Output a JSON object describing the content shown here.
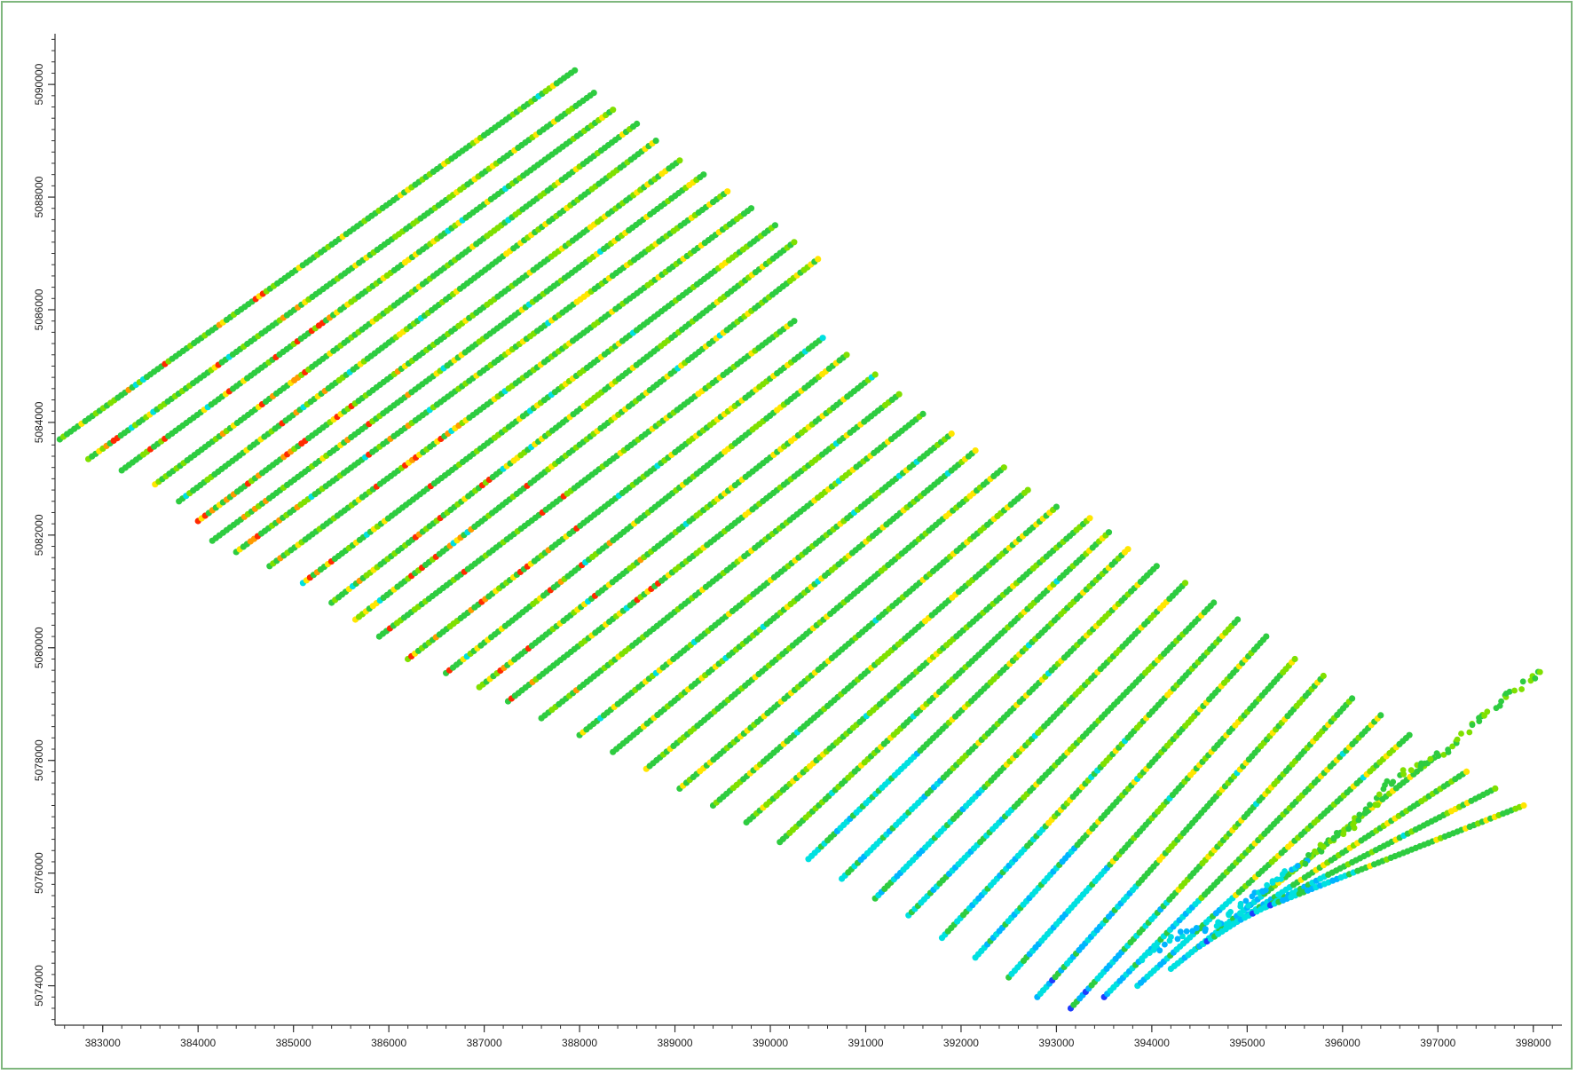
{
  "chart_data": {
    "type": "scatter",
    "title": "",
    "xlabel": "",
    "ylabel": "",
    "xlim": [
      382500,
      398300
    ],
    "ylim": [
      5073300,
      5090900
    ],
    "x_ticks": [
      383000,
      384000,
      385000,
      386000,
      387000,
      388000,
      389000,
      390000,
      391000,
      392000,
      393000,
      394000,
      395000,
      396000,
      397000,
      398000
    ],
    "x_tick_labels": [
      "383000",
      "384000",
      "385000",
      "386000",
      "387000",
      "388000",
      "389000",
      "390000",
      "391000",
      "392000",
      "393000",
      "394000",
      "395000",
      "396000",
      "397000",
      "398000"
    ],
    "y_ticks": [
      5074000,
      5076000,
      5078000,
      5080000,
      5082000,
      5084000,
      5086000,
      5088000,
      5090000
    ],
    "y_tick_labels": [
      "5074000",
      "5076000",
      "5078000",
      "5080000",
      "5082000",
      "5084000",
      "5086000",
      "5088000",
      "5090000"
    ],
    "grid": false,
    "legend": "none",
    "colormap": [
      "#1e3cff",
      "#00b4ff",
      "#00e0e0",
      "#2ecc40",
      "#7fe000",
      "#ffe600",
      "#ff9a00",
      "#ff2a00"
    ],
    "survey_lines": {
      "description_of_data": "flight lines running SW to NE, each with start and end in map coordinates (x easting, y northing)",
      "lines": [
        {
          "start": [
            382550,
            5083700
          ],
          "end": [
            387950,
            5090250
          ]
        },
        {
          "start": [
            382850,
            5083350
          ],
          "end": [
            388150,
            5089850
          ]
        },
        {
          "start": [
            383200,
            5083150
          ],
          "end": [
            388350,
            5089550
          ]
        },
        {
          "start": [
            383550,
            5082900
          ],
          "end": [
            388600,
            5089300
          ]
        },
        {
          "start": [
            383800,
            5082600
          ],
          "end": [
            388800,
            5089000
          ]
        },
        {
          "start": [
            384000,
            5082250
          ],
          "end": [
            389050,
            5088650
          ]
        },
        {
          "start": [
            384150,
            5081900
          ],
          "end": [
            389300,
            5088400
          ]
        },
        {
          "start": [
            384400,
            5081700
          ],
          "end": [
            389550,
            5088100
          ]
        },
        {
          "start": [
            384750,
            5081450
          ],
          "end": [
            389800,
            5087800
          ]
        },
        {
          "start": [
            385100,
            5081150
          ],
          "end": [
            390050,
            5087500
          ]
        },
        {
          "start": [
            385400,
            5080800
          ],
          "end": [
            390250,
            5087200
          ]
        },
        {
          "start": [
            385650,
            5080500
          ],
          "end": [
            390500,
            5086900
          ]
        },
        {
          "start": [
            385900,
            5080200
          ],
          "end": [
            390250,
            5085800
          ]
        },
        {
          "start": [
            386200,
            5079800
          ],
          "end": [
            390550,
            5085500
          ]
        },
        {
          "start": [
            386600,
            5079550
          ],
          "end": [
            390800,
            5085200
          ]
        },
        {
          "start": [
            386950,
            5079300
          ],
          "end": [
            391100,
            5084850
          ]
        },
        {
          "start": [
            387250,
            5079050
          ],
          "end": [
            391350,
            5084500
          ]
        },
        {
          "start": [
            387600,
            5078750
          ],
          "end": [
            391600,
            5084150
          ]
        },
        {
          "start": [
            388000,
            5078450
          ],
          "end": [
            391900,
            5083800
          ]
        },
        {
          "start": [
            388350,
            5078150
          ],
          "end": [
            392150,
            5083500
          ]
        },
        {
          "start": [
            388700,
            5077850
          ],
          "end": [
            392450,
            5083200
          ]
        },
        {
          "start": [
            389050,
            5077500
          ],
          "end": [
            392700,
            5082800
          ]
        },
        {
          "start": [
            389400,
            5077200
          ],
          "end": [
            393000,
            5082500
          ]
        },
        {
          "start": [
            389750,
            5076900
          ],
          "end": [
            393350,
            5082300
          ]
        },
        {
          "start": [
            390100,
            5076550
          ],
          "end": [
            393550,
            5082050
          ]
        },
        {
          "start": [
            390400,
            5076250
          ],
          "end": [
            393750,
            5081750
          ]
        },
        {
          "start": [
            390750,
            5075900
          ],
          "end": [
            394050,
            5081450
          ]
        },
        {
          "start": [
            391100,
            5075550
          ],
          "end": [
            394350,
            5081150
          ]
        },
        {
          "start": [
            391450,
            5075250
          ],
          "end": [
            394650,
            5080800
          ]
        },
        {
          "start": [
            391800,
            5074850
          ],
          "end": [
            394900,
            5080500
          ]
        },
        {
          "start": [
            392150,
            5074500
          ],
          "end": [
            395200,
            5080200
          ]
        },
        {
          "start": [
            392500,
            5074150
          ],
          "end": [
            395500,
            5079800
          ]
        },
        {
          "start": [
            392800,
            5073800
          ],
          "end": [
            395800,
            5079500
          ]
        },
        {
          "start": [
            393150,
            5073600
          ],
          "end": [
            396100,
            5079100
          ]
        },
        {
          "start": [
            393500,
            5073800
          ],
          "end": [
            396400,
            5078800
          ]
        },
        {
          "start": [
            393850,
            5074000
          ],
          "end": [
            396700,
            5078450
          ]
        },
        {
          "start": [
            394200,
            5074300
          ],
          "end": [
            397000,
            5078100
          ]
        },
        {
          "start": [
            394500,
            5074700
          ],
          "end": [
            397300,
            5077800
          ]
        },
        {
          "start": [
            394850,
            5075100
          ],
          "end": [
            397600,
            5077500
          ]
        },
        {
          "start": [
            395200,
            5075400
          ],
          "end": [
            397900,
            5077200
          ]
        }
      ]
    }
  }
}
